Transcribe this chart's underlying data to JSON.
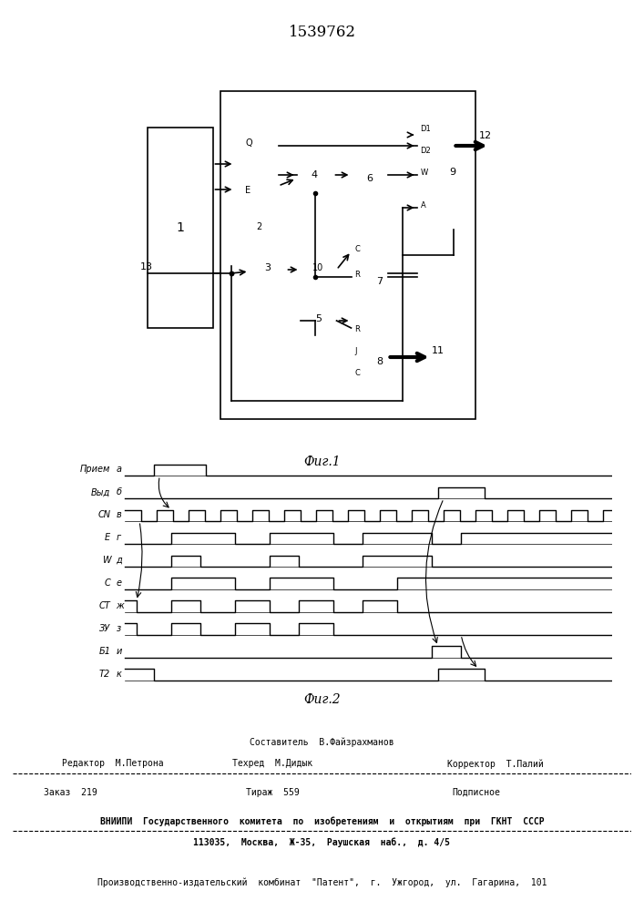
{
  "title": "1539762",
  "fig1_caption": "Фиг.1",
  "fig2_caption": "Фиг.2",
  "bg_color": "#ffffff",
  "line_color": "#000000",
  "footer_lines": [
    "Составитель  В.Файзрахманов",
    "Редактор  М.Петрова        Техред  М.Дидык        Корректор  Т.Палий",
    "Заказ  219                    Тираж  559                 Подписное",
    "ВНИИПИ  Государственного  комитета  по  изобретениям  и  открытиям  при  ГКНТ  СССР",
    "113035,  Москва,  Ж-35,  Раушская  наб.,  д. 4/5",
    "Производственно-издательский  комбинат  \"Патент\",  г.  Ужгород,  ул.  Гагарина,  101"
  ],
  "waveform_labels": [
    "Прием а",
    "Выд б",
    "СN в",
    "E г",
    "W д",
    "С е",
    "СТ ж",
    "ЗУ з",
    "Б1 и",
    "Т2 к"
  ]
}
